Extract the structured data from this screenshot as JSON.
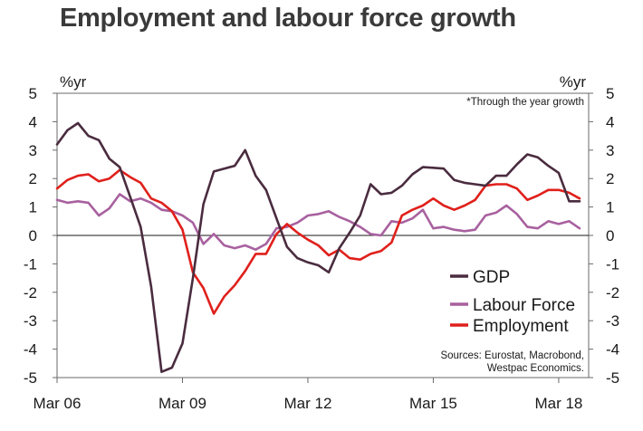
{
  "chart_data": {
    "type": "line",
    "title": "Employment and labour force growth",
    "ylabel_left": "%yr",
    "ylabel_right": "%yr",
    "note": "*Through the year growth",
    "sources": [
      "Sources: Eurostat, Macrobond,",
      "Westpac Economics."
    ],
    "ylim": [
      -5,
      5
    ],
    "yticks": [
      5,
      4,
      3,
      2,
      1,
      0,
      -1,
      -2,
      -3,
      -4,
      -5
    ],
    "xlim": [
      0,
      50
    ],
    "xticks": [
      {
        "label": "Mar 06",
        "pos": 0
      },
      {
        "label": "Mar 09",
        "pos": 12
      },
      {
        "label": "Mar 12",
        "pos": 24
      },
      {
        "label": "Mar 15",
        "pos": 36
      },
      {
        "label": "Mar 18",
        "pos": 48
      }
    ],
    "x_unit": "quarters from Mar 06",
    "x": [
      0,
      1,
      2,
      3,
      4,
      5,
      6,
      7,
      8,
      9,
      10,
      11,
      12,
      13,
      14,
      15,
      16,
      17,
      18,
      19,
      20,
      21,
      22,
      23,
      24,
      25,
      26,
      27,
      28,
      29,
      30,
      31,
      32,
      33,
      34,
      35,
      36,
      37,
      38,
      39,
      40,
      41,
      42,
      43,
      44,
      45,
      46,
      47,
      48,
      49,
      50
    ],
    "series": [
      {
        "name": "GDP",
        "color": "#4a2c3f",
        "values": [
          3.2,
          3.7,
          3.95,
          3.5,
          3.35,
          2.7,
          2.4,
          1.35,
          0.3,
          -1.8,
          -4.8,
          -4.65,
          -3.8,
          -1.5,
          1.1,
          2.25,
          2.35,
          2.45,
          3.0,
          2.1,
          1.6,
          0.6,
          -0.4,
          -0.8,
          -0.95,
          -1.05,
          -1.3,
          -0.45,
          0.1,
          0.7,
          1.8,
          1.45,
          1.5,
          1.75,
          2.15,
          2.4,
          2.38,
          2.35,
          1.95,
          1.85,
          1.8,
          1.75,
          2.1,
          2.1,
          2.5,
          2.85,
          2.75,
          2.45,
          2.2,
          1.2,
          1.2
        ]
      },
      {
        "name": "Labour Force",
        "color": "#a8619f",
        "values": [
          1.25,
          1.15,
          1.2,
          1.15,
          0.7,
          0.95,
          1.45,
          1.2,
          1.3,
          1.15,
          0.9,
          0.85,
          0.7,
          0.45,
          -0.3,
          0.05,
          -0.35,
          -0.45,
          -0.35,
          -0.5,
          -0.3,
          0.25,
          0.3,
          0.45,
          0.7,
          0.75,
          0.85,
          0.65,
          0.5,
          0.3,
          0.05,
          0.0,
          0.5,
          0.45,
          0.6,
          0.9,
          0.25,
          0.3,
          0.2,
          0.15,
          0.2,
          0.7,
          0.8,
          1.05,
          0.75,
          0.3,
          0.25,
          0.5,
          0.4,
          0.5,
          0.25
        ]
      },
      {
        "name": "Employment",
        "color": "#e0201b",
        "values": [
          1.65,
          1.95,
          2.1,
          2.15,
          1.9,
          2.0,
          2.3,
          2.05,
          1.85,
          1.3,
          1.15,
          0.85,
          0.2,
          -1.3,
          -1.85,
          -2.75,
          -2.15,
          -1.75,
          -1.25,
          -0.65,
          -0.65,
          0.05,
          0.4,
          0.1,
          -0.15,
          -0.35,
          -0.7,
          -0.5,
          -0.8,
          -0.85,
          -0.65,
          -0.55,
          -0.25,
          0.7,
          0.9,
          1.05,
          1.3,
          1.05,
          0.9,
          1.05,
          1.25,
          1.75,
          1.8,
          1.8,
          1.65,
          1.25,
          1.4,
          1.6,
          1.6,
          1.5,
          1.3
        ]
      }
    ]
  }
}
